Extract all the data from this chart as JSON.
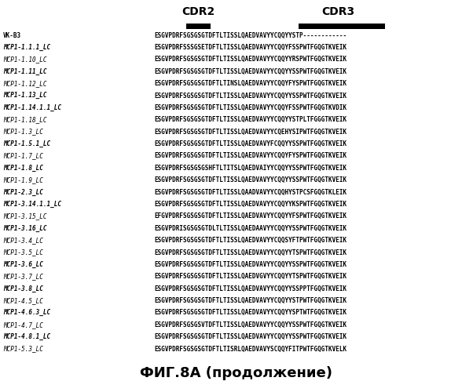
{
  "title": "ФИГ.8А (продолжение)",
  "cdr2_label": "CDR2",
  "cdr3_label": "CDR3",
  "bg_color": "#ffffff",
  "text_color": "#000000",
  "rows": [
    {
      "name": "VK-B3",
      "seq": "ESGVPDRFSGSGSGTDFTLTISSLQAEDVAVYYCQQYYSTP------------",
      "bold": false,
      "italic": false
    },
    {
      "name": "MCP1-1.1.1_LC",
      "seq": "ESGVPDRFSSSGSETDFTLTISSLQAEDVAVYYCQQYFSSPWTFGQGTKVEIK",
      "bold": true,
      "italic": true
    },
    {
      "name": "MCP1-1.10_LC",
      "seq": "ESGVPDRFSGSGSGTDFTLTISSLQAEDVAVYYCQQYYRSPWTFGQGTKVEIK",
      "bold": false,
      "italic": true
    },
    {
      "name": "MCP1-1.11_LC",
      "seq": "ESGVPDRFSGSGSGTDFTLTISSLQAEDVAVYYCQQYYSSPWTFGQGTKVEIK",
      "bold": true,
      "italic": true
    },
    {
      "name": "MCP1-1.12_LC",
      "seq": "ESGVPDRFSGSGSGTDFTLTINSLQAEDVAVYYCQQYFYSPWTFGQGTKVEIK",
      "bold": false,
      "italic": true
    },
    {
      "name": "MCP1-1.13_LC",
      "seq": "ESGVPDRFSGSGSGTDFTLTISSLQAEDVAVYYCQQYYSSPWTFGQGTKVEIK",
      "bold": true,
      "italic": true
    },
    {
      "name": "MCP1-1.14.1.1_LC",
      "seq": "ESGVPDRFSGSGSGTDFTLTISSLQAEDVAVYYCQQYFSSPWTFGQGTKVDIK",
      "bold": true,
      "italic": true
    },
    {
      "name": "MCP1-1.18_LC",
      "seq": "ESGVPDRFSGSGSGTDFTLTISSLQAEDVAVYYCQQYYSTPLTFGGGTKVEIK",
      "bold": false,
      "italic": true
    },
    {
      "name": "MCP1-1.3_LC",
      "seq": "ESGVPDRFSGSGSGTDFTLTISSLQAEDVAVYYCQEHYSIPWTFGQGTKVEIK",
      "bold": false,
      "italic": true
    },
    {
      "name": "MCP1-1.5.1_LC",
      "seq": "ESGVPDRFSGSGSGTDFTLTISSLQAEDVAVYFCQQYYSSPWTFGQGTKVEIK",
      "bold": true,
      "italic": true
    },
    {
      "name": "MCP1-1.7_LC",
      "seq": "ESGVPDRFSGSGSGTDFTLTISSLQAEDVAVYYCQQYFYSPWTFGQGTKVEIK",
      "bold": false,
      "italic": true
    },
    {
      "name": "MCP1-1.8_LC",
      "seq": "ESGVPDRFSGSGSGSНFTLTITSLQAEDVAIYYCQQYYSSPWTFGQGTKVEIK",
      "bold": true,
      "italic": true
    },
    {
      "name": "MCP1-1.9_LC",
      "seq": "ESGVPDRFSGSGSGTDFTLTISSLQAEDVAVYYCQQYYSSPWTFGQGTKVEIK",
      "bold": false,
      "italic": true
    },
    {
      "name": "MCP1-2.3_LC",
      "seq": "ESGVPDRFSGSGSGTDFTLTISSLQAADVAVYYCQQHYSTPCSFGQGTKLEIK",
      "bold": true,
      "italic": true
    },
    {
      "name": "MCP1-3.14.1.1_LC",
      "seq": "ESGVPDRFSGSGSGTDFTLTISSLQAEDVAVYYCQQYYKSPWTFGQGTKVEIK",
      "bold": true,
      "italic": true
    },
    {
      "name": "MCP1-3.15_LC",
      "seq": "EFGVPDRFSGSGSGTDFTLTISSLQAEDVAVYYCQQYYFSPWTFGQGTKVEIK",
      "bold": false,
      "italic": true
    },
    {
      "name": "MCP1-3.16_LC",
      "seq": "ESGVPDRISGSGSGTDLTLTISSLQAEDAAVYYCQQYYSSPWTFGQGTKVEIK",
      "bold": true,
      "italic": true
    },
    {
      "name": "MCP1-3.4_LC",
      "seq": "ESGVPDRFSGSGSGTDFTLTISSLQAEDVAVYYCQQSYFTPWTFGQGTKVEIK",
      "bold": false,
      "italic": true
    },
    {
      "name": "MCP1-3.5_LC",
      "seq": "ESGVPDRFSGSGSGTDFTLTISSLQAEDVAVYYCQQYYTSPWTFGQGTKVEIK",
      "bold": false,
      "italic": true
    },
    {
      "name": "MCP1-3.6_LC",
      "seq": "ESGVPDRFSGSGSGTDFTLTISSLQAEDVAVYYCQQYYSSPWTFGQGTKVEIK",
      "bold": true,
      "italic": true
    },
    {
      "name": "MCP1-3.7_LC",
      "seq": "ESGVPDRFSGSGSGTDFTLTISSLQAEDVGVYYCQQYYTSPWTFGQGTKVEIK",
      "bold": false,
      "italic": true
    },
    {
      "name": "MCP1-3.8_LC",
      "seq": "ESGVPDRFSGSGSGTDFTLTISSLQAEDVAVYYCQQYYSSPPTFGQGTKVEIK",
      "bold": true,
      "italic": true
    },
    {
      "name": "MCP1-4.5_LC",
      "seq": "ESGVPDRFSGSGSGTDFTLTISSLQAEDVAVYYCQQYYSTPWTFGQGTKVEIK",
      "bold": false,
      "italic": true
    },
    {
      "name": "MCP1-4.6.3_LC",
      "seq": "ESGVPDRFSGSGSGTDFTLTISSLQAEDVAVYYCQQYYSPTWTFGQGTKVEIK",
      "bold": true,
      "italic": true
    },
    {
      "name": "MCP1-4.7_LC",
      "seq": "ESGVPDRFSGSGSVTDFTLTISSLQAEDVAVYYCQQYYSSPWTFGQGTKVEIK",
      "bold": false,
      "italic": true
    },
    {
      "name": "MCP1-4.8.1_LC",
      "seq": "ESGVPDRFSGSGSGTDFTLTISSLQAEDVAVYYCQQYYSSPWTFGQGTKVEIK",
      "bold": true,
      "italic": true
    },
    {
      "name": "MCP1-5.3_LC",
      "seq": "ESGVPDRFSGSGSGTDFTLTISRLQAEDVAVYSCQQYFITPWTFGQGTKVЕLK",
      "bold": false,
      "italic": true
    }
  ]
}
